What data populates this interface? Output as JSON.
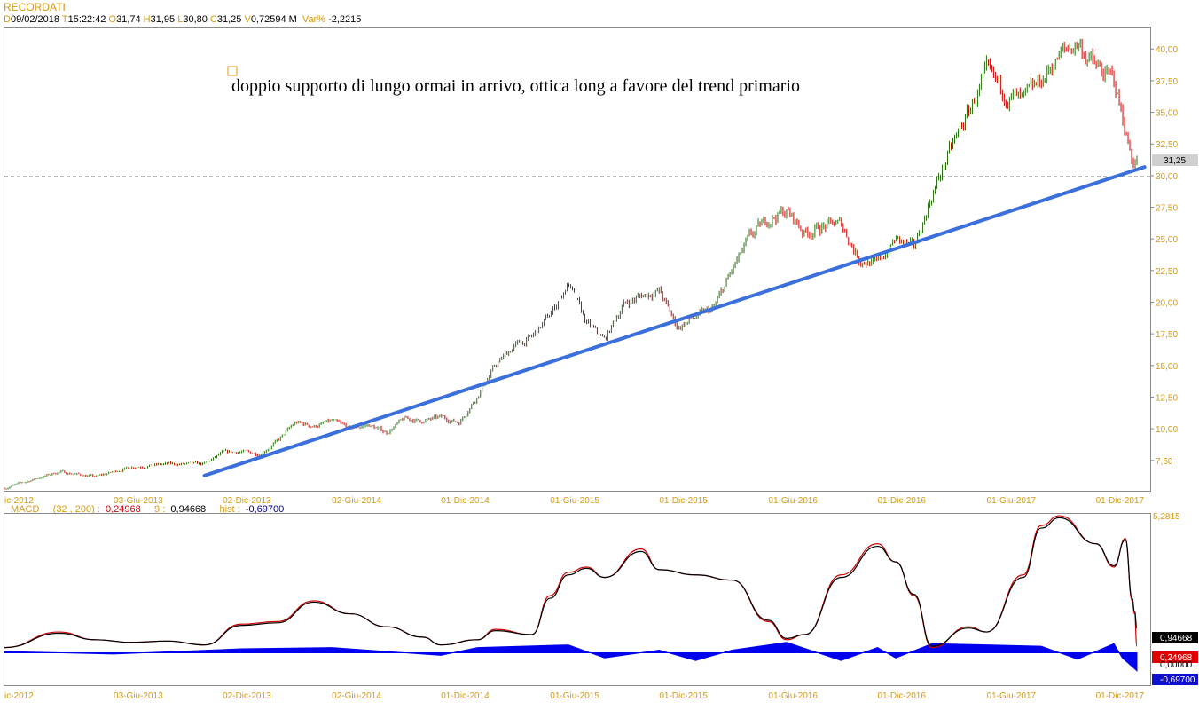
{
  "header": {
    "title": "RECORDATI",
    "d_label": "D",
    "date": "09/02/2018",
    "t_label": "T",
    "time": "15:22:42",
    "o_label": "O",
    "open": "31,74",
    "h_label": "H",
    "high": "31,95",
    "l_label": "L",
    "low": "30,80",
    "c_label": "C",
    "close": "31,25",
    "v_label": "V",
    "volume": "0,72594 M",
    "var_label": "Var%",
    "var": "-2,2215"
  },
  "annotation": "doppio supporto di lungo ormai in arrivo, ottica long a favore del trend primario",
  "macd_header": {
    "label": "MACD",
    "params": "(32 , 200) :",
    "macd": "0,24968",
    "signal_label": "9 :",
    "signal": "0,94668",
    "hist_label": "hist :",
    "hist": "-0,69700"
  },
  "colors": {
    "up_candle": "#2a6e12",
    "down_candle": "#cc0000",
    "trendline": "#3a6fdc",
    "macd_line": "#cc0000",
    "signal_line": "#000000",
    "histogram": "#0000ee",
    "axis_label": "#d59a10"
  },
  "chart_data": [
    {
      "type": "candlestick",
      "title": "RECORDATI",
      "x_tick_labels": [
        "ic-2012",
        "03-Giu-2013",
        "02-Dic-2013",
        "02-Giu-2014",
        "01-Dic-2014",
        "01-Giu-2015",
        "01-Dic-2015",
        "01-Giu-2016",
        "01-Dic-2016",
        "01-Giu-2017",
        "01-Dic-2017"
      ],
      "y_tick_labels": [
        "40,00",
        "37,50",
        "35,00",
        "32,50",
        "30,00",
        "27,50",
        "25,00",
        "22,50",
        "20,00",
        "17,50",
        "15,00",
        "12,50",
        "10,00",
        "7,50"
      ],
      "y_ticks": [
        40,
        37.5,
        35,
        32.5,
        30,
        27.5,
        25,
        22.5,
        20,
        17.5,
        15,
        12.5,
        10,
        7.5
      ],
      "ylim": [
        5.1,
        41.7
      ],
      "last_price_label": "31,25",
      "last_price": 31.25,
      "horizontal_line": 29.9,
      "trendline": {
        "start": [
          "2013-11",
          6.3
        ],
        "end": [
          "2018-02",
          30.4
        ]
      },
      "price_path": [
        [
          "2012-12",
          5.3
        ],
        [
          "2013-03",
          6.6
        ],
        [
          "2013-05",
          6.2
        ],
        [
          "2013-07",
          7.0
        ],
        [
          "2013-09",
          7.2
        ],
        [
          "2013-11",
          7.2
        ],
        [
          "2013-12",
          8.1
        ],
        [
          "2014-01",
          8.2
        ],
        [
          "2014-02",
          8.0
        ],
        [
          "2014-03",
          9.0
        ],
        [
          "2014-04",
          10.5
        ],
        [
          "2014-05",
          10.2
        ],
        [
          "2014-06",
          10.6
        ],
        [
          "2014-07",
          10.0
        ],
        [
          "2014-08",
          10.3
        ],
        [
          "2014-09",
          9.7
        ],
        [
          "2014-10",
          10.8
        ],
        [
          "2014-11",
          10.6
        ],
        [
          "2014-12",
          10.9
        ],
        [
          "2015-01",
          10.5
        ],
        [
          "2015-02",
          12.6
        ],
        [
          "2015-03",
          15.0
        ],
        [
          "2015-04",
          16.5
        ],
        [
          "2015-05",
          17.2
        ],
        [
          "2015-06",
          19.0
        ],
        [
          "2015-07",
          21.5
        ],
        [
          "2015-08",
          18.3
        ],
        [
          "2015-09",
          17.0
        ],
        [
          "2015-10",
          19.8
        ],
        [
          "2015-11",
          20.5
        ],
        [
          "2015-12",
          20.9
        ],
        [
          "2016-01",
          18.0
        ],
        [
          "2016-02",
          18.8
        ],
        [
          "2016-03",
          19.5
        ],
        [
          "2016-04",
          22.5
        ],
        [
          "2016-05",
          25.1
        ],
        [
          "2016-06",
          26.6
        ],
        [
          "2016-07",
          27.2
        ],
        [
          "2016-08",
          25.5
        ],
        [
          "2016-09",
          26.0
        ],
        [
          "2016-10",
          26.2
        ],
        [
          "2016-11",
          23.4
        ],
        [
          "2016-12",
          23.0
        ],
        [
          "2017-01",
          25.0
        ],
        [
          "2017-02",
          24.2
        ],
        [
          "2017-03",
          28.5
        ],
        [
          "2017-04",
          32.0
        ],
        [
          "2017-05",
          35.0
        ],
        [
          "2017-06",
          38.0
        ],
        [
          "2017-07",
          36.5
        ],
        [
          "2017-08",
          35.8
        ],
        [
          "2017-09",
          37.5
        ],
        [
          "2017-10",
          39.5
        ],
        [
          "2017-11",
          40.5
        ],
        [
          "2017-12",
          38.5
        ],
        [
          "2018-01",
          37.5
        ],
        [
          "2018-02",
          31.25
        ]
      ]
    },
    {
      "type": "line",
      "title": "MACD",
      "ylim": [
        -1.25,
        5.35
      ],
      "y_tick_labels": [
        "5,2815"
      ],
      "y_ticks": [
        5.2815
      ],
      "value_labels": [
        "0,94668",
        "0,24968",
        "0,00000",
        "-0,69700"
      ],
      "series": [
        {
          "name": "MACD (32 , 200)",
          "color": "#cc0000",
          "values": [
            [
              "2012-12",
              0.2
            ],
            [
              "2013-03",
              0.8
            ],
            [
              "2013-05",
              0.5
            ],
            [
              "2013-07",
              0.4
            ],
            [
              "2013-09",
              0.45
            ],
            [
              "2013-11",
              0.3
            ],
            [
              "2014-01",
              1.1
            ],
            [
              "2014-03",
              1.2
            ],
            [
              "2014-05",
              2.0
            ],
            [
              "2014-07",
              1.5
            ],
            [
              "2014-09",
              1.0
            ],
            [
              "2014-11",
              0.6
            ],
            [
              "2014-12",
              0.3
            ],
            [
              "2015-02",
              0.5
            ],
            [
              "2015-03",
              0.9
            ],
            [
              "2015-05",
              0.7
            ],
            [
              "2015-06",
              2.2
            ],
            [
              "2015-07",
              3.1
            ],
            [
              "2015-08",
              3.3
            ],
            [
              "2015-09",
              2.9
            ],
            [
              "2015-11",
              4.0
            ],
            [
              "2015-12",
              3.2
            ],
            [
              "2016-02",
              3.0
            ],
            [
              "2016-04",
              2.8
            ],
            [
              "2016-06",
              1.2
            ],
            [
              "2016-07",
              0.5
            ],
            [
              "2016-08",
              0.7
            ],
            [
              "2016-10",
              3.0
            ],
            [
              "2016-12",
              4.2
            ],
            [
              "2017-01",
              3.5
            ],
            [
              "2017-02",
              2.2
            ],
            [
              "2017-03",
              0.2
            ],
            [
              "2017-05",
              1.0
            ],
            [
              "2017-06",
              0.8
            ],
            [
              "2017-08",
              3.0
            ],
            [
              "2017-09",
              4.9
            ],
            [
              "2017-10",
              5.28
            ],
            [
              "2017-12",
              4.2
            ],
            [
              "2018-01",
              3.3
            ],
            [
              "2018-01-20",
              4.4
            ],
            [
              "2018-02",
              2.0
            ],
            [
              "2018-02-05",
              1.5
            ],
            [
              "2018-02-09",
              0.24968
            ]
          ]
        },
        {
          "name": "9",
          "color": "#000000",
          "values": [
            [
              "2012-12",
              0.2
            ],
            [
              "2013-03",
              0.75
            ],
            [
              "2013-05",
              0.5
            ],
            [
              "2013-07",
              0.4
            ],
            [
              "2013-09",
              0.45
            ],
            [
              "2013-11",
              0.3
            ],
            [
              "2014-01",
              1.05
            ],
            [
              "2014-03",
              1.15
            ],
            [
              "2014-05",
              1.95
            ],
            [
              "2014-07",
              1.5
            ],
            [
              "2014-09",
              1.0
            ],
            [
              "2014-11",
              0.6
            ],
            [
              "2014-12",
              0.3
            ],
            [
              "2015-02",
              0.5
            ],
            [
              "2015-03",
              0.85
            ],
            [
              "2015-05",
              0.7
            ],
            [
              "2015-06",
              2.1
            ],
            [
              "2015-07",
              3.0
            ],
            [
              "2015-08",
              3.25
            ],
            [
              "2015-09",
              2.9
            ],
            [
              "2015-11",
              3.9
            ],
            [
              "2015-12",
              3.2
            ],
            [
              "2016-02",
              3.0
            ],
            [
              "2016-04",
              2.8
            ],
            [
              "2016-06",
              1.25
            ],
            [
              "2016-07",
              0.55
            ],
            [
              "2016-08",
              0.7
            ],
            [
              "2016-10",
              2.9
            ],
            [
              "2016-12",
              4.1
            ],
            [
              "2017-01",
              3.5
            ],
            [
              "2017-02",
              2.25
            ],
            [
              "2017-03",
              0.25
            ],
            [
              "2017-05",
              0.95
            ],
            [
              "2017-06",
              0.8
            ],
            [
              "2017-08",
              2.9
            ],
            [
              "2017-09",
              4.8
            ],
            [
              "2017-10",
              5.2
            ],
            [
              "2017-12",
              4.2
            ],
            [
              "2018-01",
              3.35
            ],
            [
              "2018-01-20",
              4.35
            ],
            [
              "2018-02",
              2.1
            ],
            [
              "2018-02-05",
              1.6
            ],
            [
              "2018-02-09",
              0.94668
            ]
          ]
        },
        {
          "name": "hist",
          "color": "#0000ee",
          "type": "area",
          "values": [
            [
              "2012-12",
              0.05
            ],
            [
              "2013-06",
              -0.05
            ],
            [
              "2014-01",
              0.15
            ],
            [
              "2014-06",
              0.2
            ],
            [
              "2014-12",
              -0.1
            ],
            [
              "2015-02",
              0.2
            ],
            [
              "2015-07",
              0.3
            ],
            [
              "2015-09",
              -0.2
            ],
            [
              "2015-12",
              0.1
            ],
            [
              "2016-02",
              -0.3
            ],
            [
              "2016-04",
              0.1
            ],
            [
              "2016-07",
              0.4
            ],
            [
              "2016-10",
              -0.3
            ],
            [
              "2016-12",
              0.2
            ],
            [
              "2017-01",
              -0.2
            ],
            [
              "2017-03",
              0.35
            ],
            [
              "2017-06",
              0.3
            ],
            [
              "2017-09",
              0.25
            ],
            [
              "2017-11",
              -0.25
            ],
            [
              "2018-01",
              0.35
            ],
            [
              "2018-01-15",
              -0.2
            ],
            [
              "2018-02-09",
              -0.697
            ]
          ]
        }
      ]
    }
  ]
}
